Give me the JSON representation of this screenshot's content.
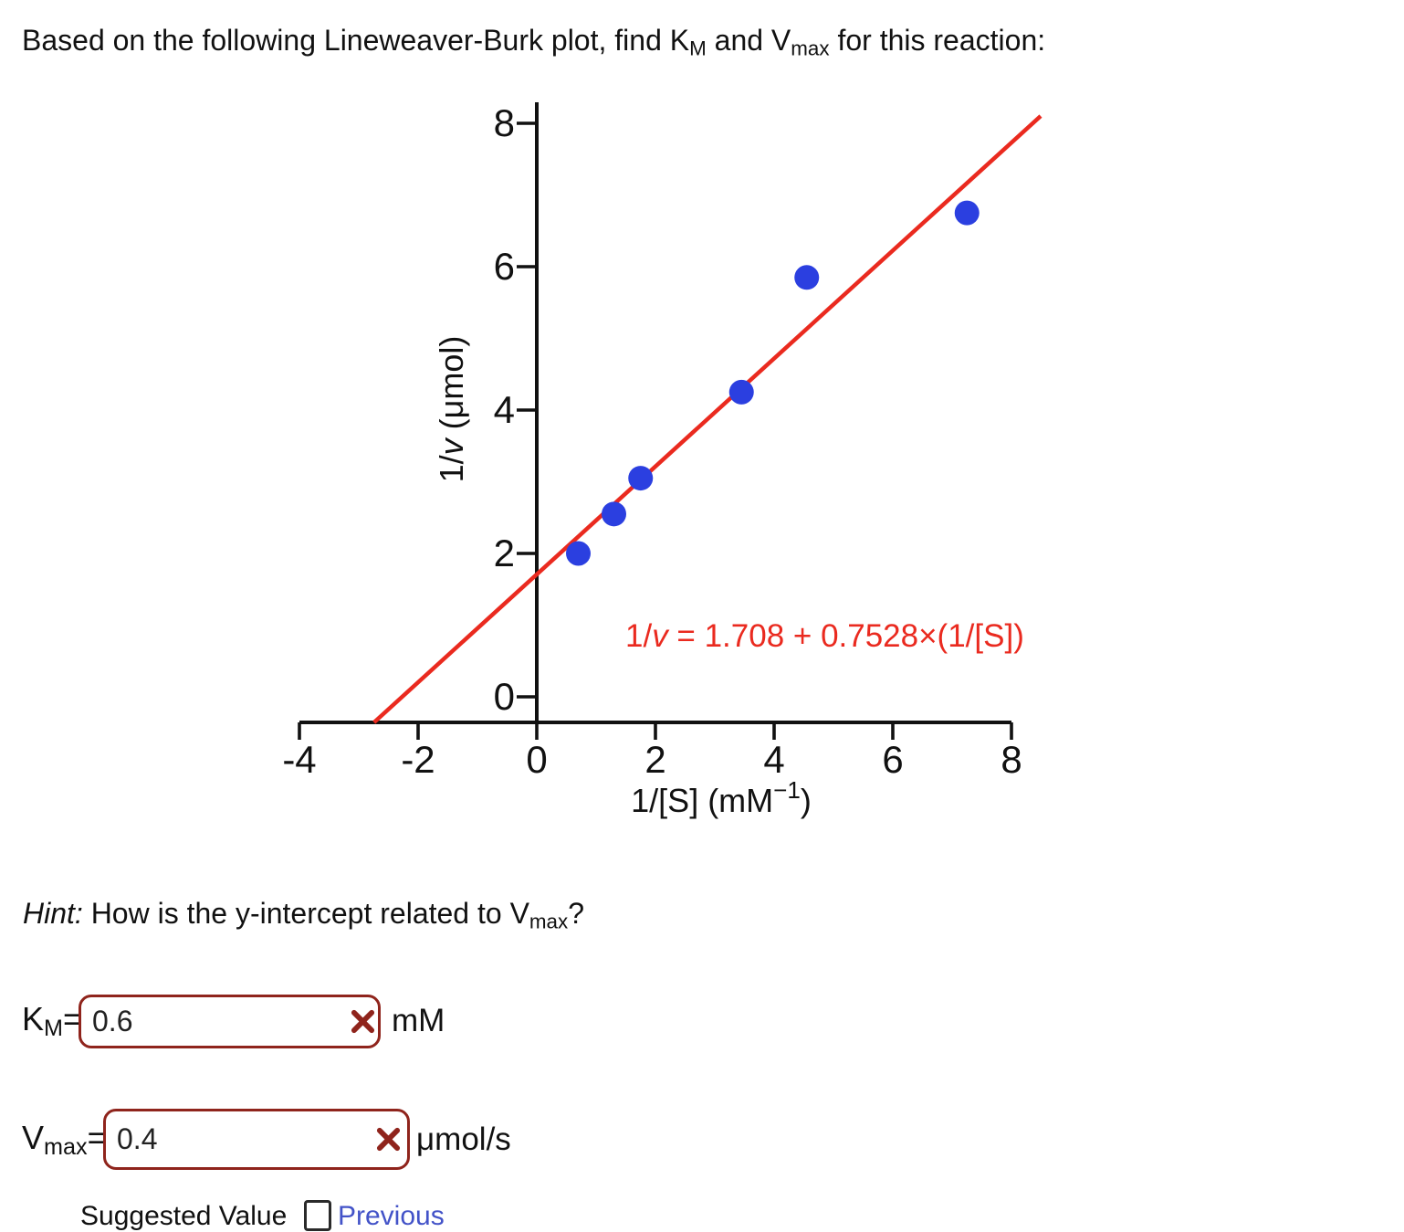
{
  "question": {
    "title_parts": [
      "Based on the following Lineweaver-Burk plot, find K",
      "M",
      " and V",
      "max",
      " for this reaction:"
    ]
  },
  "hint": {
    "lead_italic": "Hint:",
    "body": " How is the y-intercept related to V",
    "sub": "max",
    "tail": "?"
  },
  "chart_data": {
    "type": "scatter",
    "points": [
      [
        0.7,
        2.0
      ],
      [
        1.3,
        2.55
      ],
      [
        1.75,
        3.05
      ],
      [
        3.45,
        4.25
      ],
      [
        4.55,
        5.85
      ],
      [
        7.25,
        6.75
      ]
    ],
    "fit_line": {
      "intercept": 1.708,
      "slope": 0.7528
    },
    "equation_parts": {
      "pre": "1/",
      "italic": "v",
      "post": " = 1.708 + 0.7528×(1/[S])"
    },
    "xlabel_parts": {
      "pre": "1/[S] (mM",
      "sup": "−1",
      "post": ")"
    },
    "ylabel_parts": {
      "pre": "1/",
      "italic": "v",
      "post": " (μmol)"
    },
    "x_ticks": [
      -4,
      -2,
      0,
      2,
      4,
      6,
      8
    ],
    "y_ticks": [
      0,
      2,
      4,
      6,
      8
    ],
    "xlim": [
      -4,
      8.5
    ],
    "ylim": [
      -0.36,
      8.3
    ],
    "grid": false,
    "point_color": "#2b3fe0",
    "line_color": "#ea2a1f",
    "axis_color": "#111111"
  },
  "answers": {
    "km": {
      "label_base": "K",
      "label_sub": "M",
      "equals": "=",
      "value": "0.6",
      "unit": "mM",
      "status": "incorrect",
      "status_icon": "x-mark"
    },
    "vmax": {
      "label_base": "V",
      "label_sub": "max",
      "equals": "=",
      "value": "0.4",
      "unit": "μmol/s",
      "status": "incorrect",
      "status_icon": "x-mark"
    }
  },
  "footer": {
    "left_text": "Suggested Value",
    "icon": "document-icon",
    "link_text": "Previous"
  },
  "colors": {
    "error_maroon": "#8f241c",
    "link_blue": "#4353c8"
  }
}
